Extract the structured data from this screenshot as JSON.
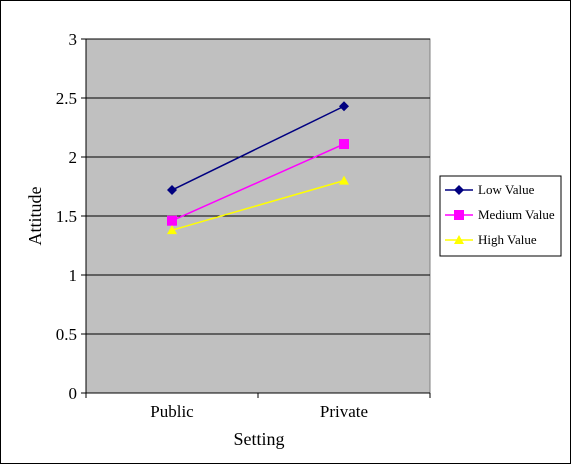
{
  "chart_data": {
    "type": "line",
    "xlabel": "Setting",
    "ylabel": "Attitude",
    "categories": [
      "Public",
      "Private"
    ],
    "ylim": [
      0,
      3
    ],
    "yticks": [
      "0",
      "0.5",
      "1",
      "1.5",
      "2",
      "2.5",
      "3"
    ],
    "grid": true,
    "legend_position": "right",
    "plot_background": "#c0c0c0",
    "series": [
      {
        "name": "Low Value",
        "values": [
          1.72,
          2.43
        ],
        "color": "#000080",
        "marker": "diamond"
      },
      {
        "name": "Medium Value",
        "values": [
          1.46,
          2.11
        ],
        "color": "#ff00ff",
        "marker": "square"
      },
      {
        "name": "High Value",
        "values": [
          1.38,
          1.8
        ],
        "color": "#ffff00",
        "marker": "triangle"
      }
    ]
  }
}
